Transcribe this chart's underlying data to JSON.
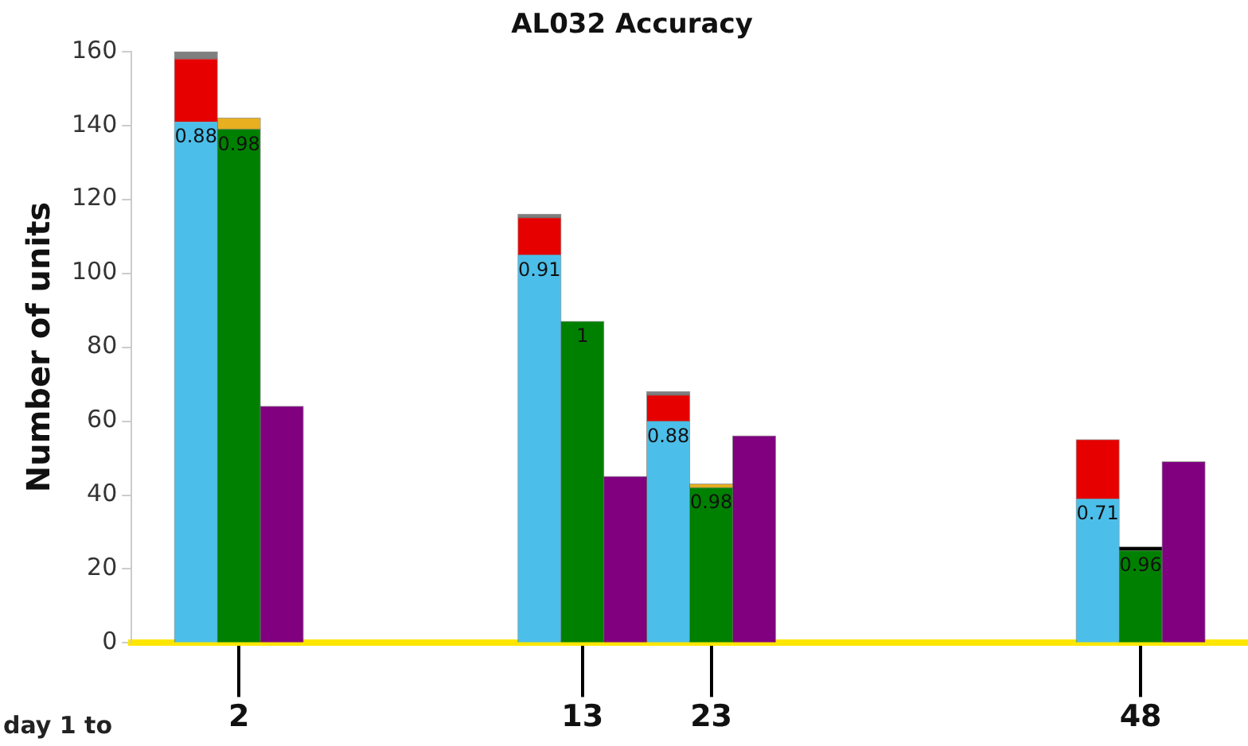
{
  "chart_data": {
    "type": "bar",
    "title": "AL032 Accuracy",
    "ylabel": "Number of units",
    "xlabel": "day 1 to",
    "categories": [
      null,
      null,
      "2",
      null,
      null,
      null,
      null,
      null,
      null,
      null,
      "13",
      null,
      null,
      "23",
      null,
      null,
      null,
      null,
      null,
      null,
      null,
      null,
      null,
      "48",
      null,
      null
    ],
    "ylim": [
      0,
      160
    ],
    "yticks": [
      0,
      20,
      40,
      60,
      80,
      100,
      120,
      140,
      160
    ],
    "stacked": true,
    "grid": false,
    "legend": false,
    "series": [
      {
        "color": "#4bbfea",
        "values": [
          null,
          141,
          null,
          null,
          null,
          null,
          null,
          null,
          null,
          105,
          null,
          null,
          60,
          null,
          null,
          null,
          null,
          null,
          null,
          null,
          null,
          null,
          39,
          null,
          null,
          null
        ]
      },
      {
        "color": "#e60000",
        "values": [
          null,
          17,
          null,
          null,
          null,
          null,
          null,
          null,
          null,
          10,
          null,
          null,
          7,
          null,
          null,
          null,
          null,
          null,
          null,
          null,
          null,
          null,
          16,
          null,
          null,
          null
        ]
      },
      {
        "color": "#7f7f7f",
        "values": [
          null,
          2,
          null,
          null,
          null,
          null,
          null,
          null,
          null,
          1,
          null,
          null,
          1,
          null,
          null,
          null,
          null,
          null,
          null,
          null,
          null,
          null,
          null,
          null,
          null,
          null
        ]
      },
      {
        "color": "#008000",
        "values": [
          null,
          null,
          139,
          null,
          null,
          null,
          null,
          null,
          null,
          null,
          87,
          null,
          null,
          42,
          null,
          null,
          null,
          null,
          null,
          null,
          null,
          null,
          null,
          25,
          null,
          null
        ]
      },
      {
        "color": "#e8b020",
        "values": [
          null,
          null,
          3,
          null,
          null,
          null,
          null,
          null,
          null,
          null,
          null,
          null,
          null,
          1,
          null,
          null,
          null,
          null,
          null,
          null,
          null,
          null,
          null,
          null,
          null,
          null
        ]
      },
      {
        "color": "#000000",
        "values": [
          null,
          null,
          null,
          null,
          null,
          null,
          null,
          null,
          null,
          null,
          null,
          null,
          null,
          null,
          null,
          null,
          null,
          null,
          null,
          null,
          null,
          null,
          null,
          1,
          null,
          null
        ]
      },
      {
        "color": "#800080",
        "values": [
          null,
          null,
          null,
          64,
          null,
          null,
          null,
          null,
          null,
          null,
          null,
          45,
          null,
          null,
          56,
          null,
          null,
          null,
          null,
          null,
          null,
          null,
          null,
          null,
          49,
          null
        ]
      }
    ],
    "annotations": [
      {
        "text": "0.88",
        "y": 141
      },
      {
        "text": "0.91",
        "y": 105
      },
      {
        "text": "0.88",
        "y": 60
      },
      {
        "text": "0.71",
        "y": 39
      },
      {
        "text": "0.98",
        "y": 139
      },
      {
        "text": "1",
        "y": 87
      },
      {
        "text": "0.98",
        "y": 42
      },
      {
        "text": "0.96",
        "y": 25
      }
    ]
  }
}
